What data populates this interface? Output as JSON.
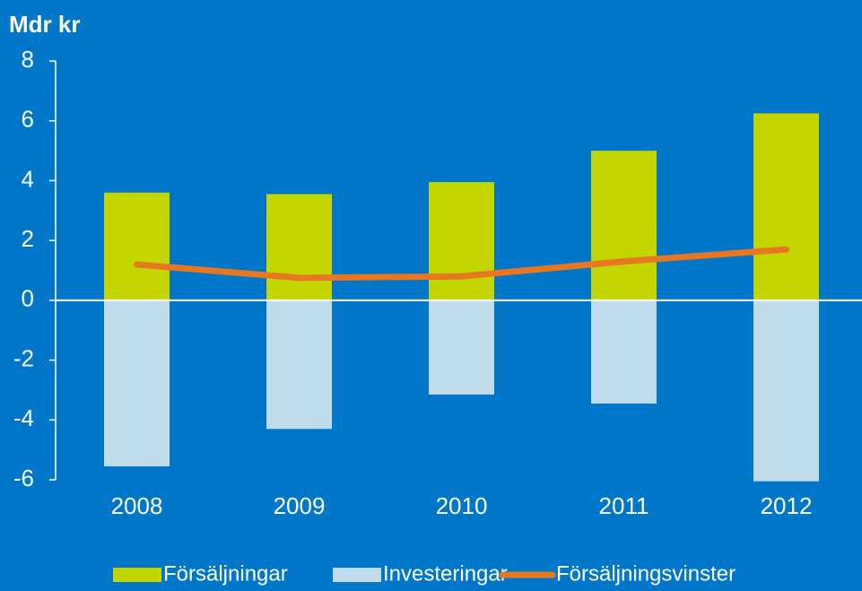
{
  "chart_data": {
    "type": "bar",
    "title": "Mdr kr",
    "categories": [
      "2008",
      "2009",
      "2010",
      "2011",
      "2012"
    ],
    "series": [
      {
        "name": "Försäljningar",
        "type": "bar",
        "color": "#c4d600",
        "values": [
          3.6,
          3.55,
          3.95,
          5.0,
          6.25
        ]
      },
      {
        "name": "Investeringar",
        "type": "bar",
        "color": "#c0dcea",
        "values": [
          -5.55,
          -4.3,
          -3.15,
          -3.45,
          -6.05
        ]
      },
      {
        "name": "Försäljningsvinster",
        "type": "line",
        "color": "#e87722",
        "values": [
          1.2,
          0.75,
          0.8,
          1.3,
          1.7
        ]
      }
    ],
    "ylim": [
      -6,
      8
    ],
    "yticks": [
      -6,
      -4,
      -2,
      0,
      2,
      4,
      6,
      8
    ],
    "legend": "bottom"
  }
}
